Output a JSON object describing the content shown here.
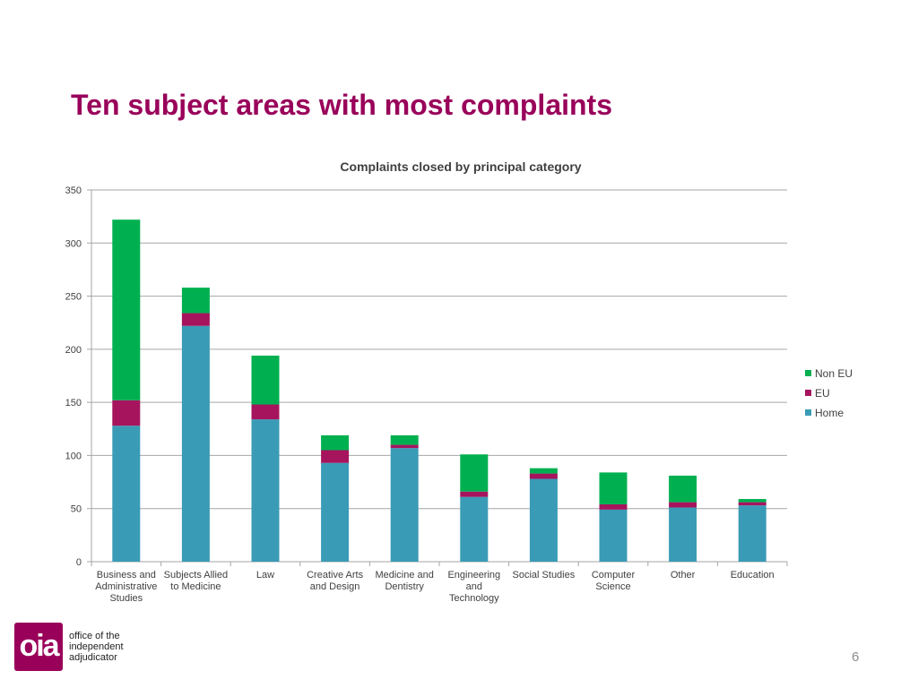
{
  "slide": {
    "title": "Ten subject areas with most complaints",
    "page_number": "6"
  },
  "logo": {
    "mark": "oia",
    "lines": [
      "office of the",
      "independent",
      "adjudicator"
    ],
    "color": "#99005a"
  },
  "chart_data": {
    "type": "bar",
    "stacked": true,
    "title": "Complaints closed by principal category",
    "xlabel": "",
    "ylabel": "",
    "ylim": [
      0,
      350
    ],
    "yticks": [
      0,
      50,
      100,
      150,
      200,
      250,
      300,
      350
    ],
    "grid": true,
    "legend_position": "right",
    "categories": [
      [
        "Business and",
        "Administrative",
        "Studies"
      ],
      [
        "Subjects Allied",
        "to Medicine"
      ],
      [
        "Law"
      ],
      [
        "Creative Arts",
        "and Design"
      ],
      [
        "Medicine and",
        "Dentistry"
      ],
      [
        "Engineering",
        "and",
        "Technology"
      ],
      [
        "Social Studies"
      ],
      [
        "Computer",
        "Science"
      ],
      [
        "Other"
      ],
      [
        "Education"
      ]
    ],
    "series": [
      {
        "name": "Home",
        "color": "#3a9bb6",
        "values": [
          128,
          222,
          134,
          93,
          107,
          61,
          78,
          49,
          51,
          53
        ]
      },
      {
        "name": "EU",
        "color": "#a6145e",
        "values": [
          24,
          12,
          14,
          12,
          3,
          5,
          5,
          5,
          5,
          3
        ]
      },
      {
        "name": "Non EU",
        "color": "#00b050",
        "values": [
          170,
          24,
          46,
          14,
          9,
          35,
          5,
          30,
          25,
          3
        ]
      }
    ]
  }
}
